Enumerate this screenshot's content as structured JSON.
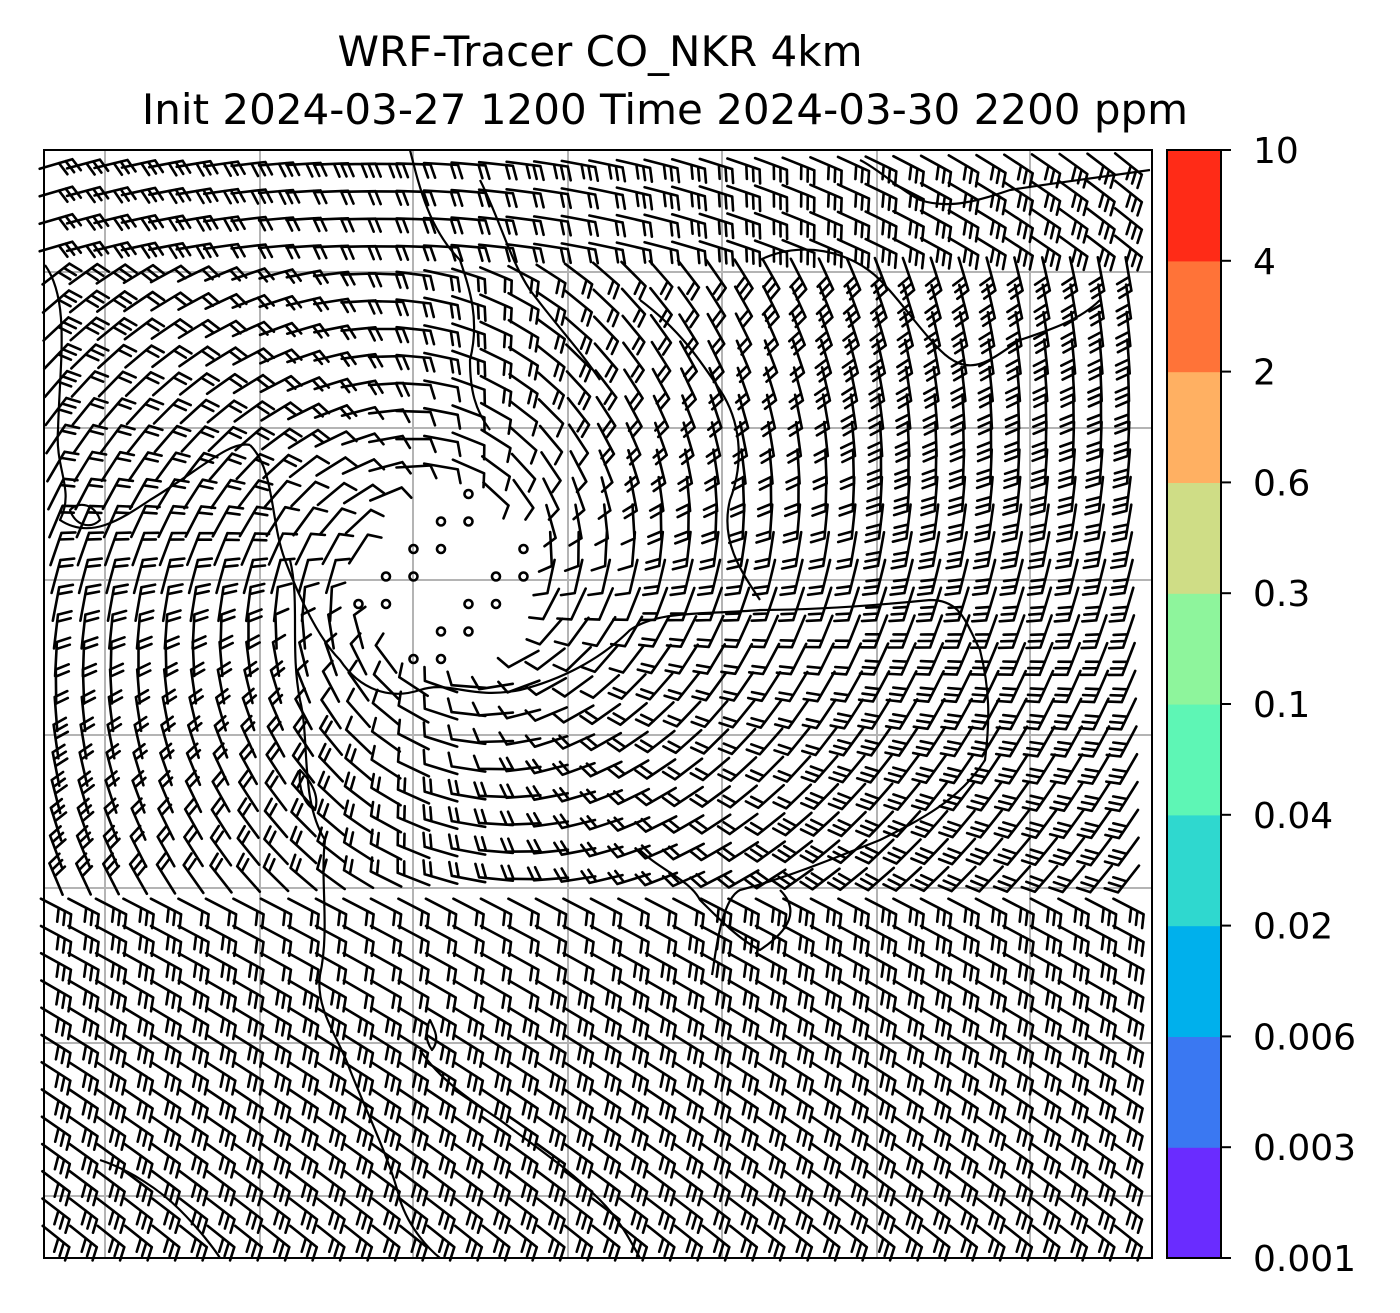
{
  "title": {
    "line1": "WRF-Tracer CO_NKR 4km",
    "line2": "Init 2024-03-27 1200 Time 2024-03-30 2200 ppm"
  },
  "colorbar": {
    "ticks": [
      "0.001",
      "0.003",
      "0.006",
      "0.02",
      "0.04",
      "0.1",
      "0.3",
      "0.6",
      "2",
      "4",
      "10"
    ],
    "colors": [
      "#6a2cff",
      "#3a78f2",
      "#00b0ec",
      "#2fd8cf",
      "#5ef6b5",
      "#8ef59c",
      "#cfdd86",
      "#ffb062",
      "#ff7338",
      "#ff2b17"
    ]
  },
  "map": {
    "wind_barbs": "black",
    "coastlines": "black",
    "gridlines": "#b4b4b4"
  }
}
